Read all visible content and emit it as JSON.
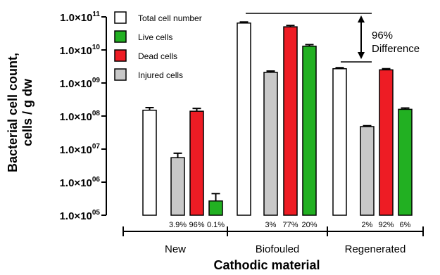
{
  "chart_data": {
    "type": "bar",
    "title": "",
    "xlabel": "Cathodic material",
    "ylabel_line1": "Bacterial cell count,",
    "ylabel_line2": "cells / g dw",
    "yscale": "log",
    "ylim": [
      100000,
      100000000000
    ],
    "ytick_labels": [
      {
        "mant": "1.0×10",
        "exp": "05",
        "value": 100000
      },
      {
        "mant": "1.0×10",
        "exp": "06",
        "value": 1000000
      },
      {
        "mant": "1.0×10",
        "exp": "07",
        "value": 10000000
      },
      {
        "mant": "1.0×10",
        "exp": "08",
        "value": 100000000
      },
      {
        "mant": "1.0×10",
        "exp": "09",
        "value": 1000000000
      },
      {
        "mant": "1.0×10",
        "exp": "10",
        "value": 10000000000
      },
      {
        "mant": "1.0×10",
        "exp": "11",
        "value": 100000000000
      }
    ],
    "legend": [
      {
        "label": "Total cell number",
        "color": "#ffffff"
      },
      {
        "label": "Live cells",
        "color": "#22b022"
      },
      {
        "label": "Dead cells",
        "color": "#ee1c24"
      },
      {
        "label": "Injured cells",
        "color": "#c8c8c8"
      }
    ],
    "legend_position": "top-left",
    "groups": [
      {
        "name": "New",
        "bars": [
          {
            "series": "Total cell number",
            "value": 150000000,
            "err": 180000000,
            "color": "#ffffff",
            "label": ""
          },
          {
            "series": "Injured cells",
            "value": 5500000,
            "err": 7500000,
            "color": "#c8c8c8",
            "label": "3.9%"
          },
          {
            "series": "Dead cells",
            "value": 140000000,
            "err": 170000000,
            "color": "#ee1c24",
            "label": "96%"
          },
          {
            "series": "Live cells",
            "value": 270000,
            "err": 450000,
            "color": "#22b022",
            "label": "0.1%"
          }
        ]
      },
      {
        "name": "Biofouled",
        "bars": [
          {
            "series": "Total cell number",
            "value": 65000000000,
            "err": 70000000000,
            "color": "#ffffff",
            "label": ""
          },
          {
            "series": "Injured cells",
            "value": 2100000000,
            "err": 2300000000,
            "color": "#c8c8c8",
            "label": "3%"
          },
          {
            "series": "Dead cells",
            "value": 50000000000,
            "err": 55000000000,
            "color": "#ee1c24",
            "label": "77%"
          },
          {
            "series": "Live cells",
            "value": 13000000000,
            "err": 14500000000,
            "color": "#22b022",
            "label": "20%"
          }
        ]
      },
      {
        "name": "Regenerated",
        "bars": [
          {
            "series": "Total cell number",
            "value": 2700000000,
            "err": 2900000000,
            "color": "#ffffff",
            "label": ""
          },
          {
            "series": "Injured cells",
            "value": 48000000,
            "err": 51000000,
            "color": "#c8c8c8",
            "label": "2%"
          },
          {
            "series": "Dead cells",
            "value": 2500000000,
            "err": 2700000000,
            "color": "#ee1c24",
            "label": "92%"
          },
          {
            "series": "Live cells",
            "value": 160000000,
            "err": 175000000,
            "color": "#22b022",
            "label": "6%"
          }
        ]
      }
    ],
    "annotation": {
      "line1": "96%",
      "line2": "Difference"
    }
  }
}
